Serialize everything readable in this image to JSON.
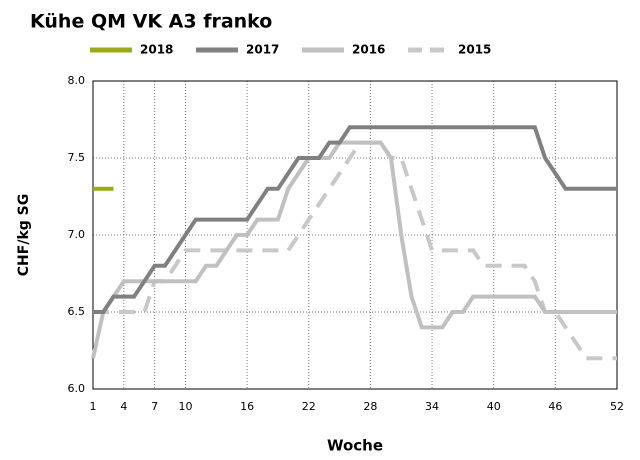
{
  "chart_data": {
    "type": "line",
    "title": "Kühe QM VK A3 franko",
    "x_label": "Woche",
    "y_label": "CHF/kg SG",
    "x": [
      1,
      2,
      3,
      4,
      5,
      6,
      7,
      8,
      9,
      10,
      11,
      12,
      13,
      14,
      15,
      16,
      17,
      18,
      19,
      20,
      21,
      22,
      23,
      24,
      25,
      26,
      27,
      28,
      29,
      30,
      31,
      32,
      33,
      34,
      35,
      36,
      37,
      38,
      39,
      40,
      41,
      42,
      43,
      44,
      45,
      46,
      47,
      48,
      49,
      50,
      51,
      52
    ],
    "xlim": [
      1,
      52
    ],
    "xticks": [
      1,
      4,
      7,
      10,
      16,
      22,
      28,
      34,
      40,
      46,
      52
    ],
    "ylim": [
      6,
      8
    ],
    "yticks": [
      {
        "value": 6,
        "label": "6.0"
      },
      6.5,
      {
        "value": 7,
        "label": "7.0"
      },
      7.5,
      {
        "value": 8,
        "label": "8.0"
      }
    ],
    "grid": true,
    "series": [
      {
        "name": "2018",
        "color": "#9aab17",
        "dashed": false,
        "values": [
          7.3,
          7.3,
          7.3,
          null,
          null,
          null,
          null,
          null,
          null,
          null,
          null,
          null,
          null,
          null,
          null,
          null,
          null,
          null,
          null,
          null,
          null,
          null,
          null,
          null,
          null,
          null,
          null,
          null,
          null,
          null,
          null,
          null,
          null,
          null,
          null,
          null,
          null,
          null,
          null,
          null,
          null,
          null,
          null,
          null,
          null,
          null,
          null,
          null,
          null,
          null,
          null,
          null
        ]
      },
      {
        "name": "2017",
        "color": "#808080",
        "dashed": false,
        "values": [
          6.5,
          6.5,
          6.6,
          6.6,
          6.6,
          6.7,
          6.8,
          6.8,
          6.9,
          7.0,
          7.1,
          7.1,
          7.1,
          7.1,
          7.1,
          7.1,
          7.2,
          7.3,
          7.3,
          7.4,
          7.5,
          7.5,
          7.5,
          7.6,
          7.6,
          7.7,
          7.7,
          7.7,
          7.7,
          7.7,
          7.7,
          7.7,
          7.7,
          7.7,
          7.7,
          7.7,
          7.7,
          7.7,
          7.7,
          7.7,
          7.7,
          7.7,
          7.7,
          7.7,
          7.5,
          7.4,
          7.3,
          7.3,
          7.3,
          7.3,
          7.3,
          7.3
        ]
      },
      {
        "name": "2016",
        "color": "#c0c0c0",
        "dashed": false,
        "values": [
          6.2,
          6.5,
          6.6,
          6.7,
          6.7,
          6.7,
          6.7,
          6.7,
          6.7,
          6.7,
          6.7,
          6.8,
          6.8,
          6.9,
          7.0,
          7.0,
          7.1,
          7.1,
          7.1,
          7.3,
          7.4,
          7.5,
          7.5,
          7.5,
          7.6,
          7.6,
          7.6,
          7.6,
          7.6,
          7.5,
          7.0,
          6.6,
          6.4,
          6.4,
          6.4,
          6.5,
          6.5,
          6.6,
          6.6,
          6.6,
          6.6,
          6.6,
          6.6,
          6.6,
          6.5,
          6.5,
          6.5,
          6.5,
          6.5,
          6.5,
          6.5,
          6.5
        ]
      },
      {
        "name": "2015",
        "color": "#c8c8c8",
        "dashed": true,
        "values": [
          6.5,
          6.5,
          6.5,
          6.5,
          6.5,
          6.5,
          6.7,
          6.7,
          6.8,
          6.9,
          6.9,
          6.9,
          6.9,
          6.9,
          6.9,
          6.9,
          6.9,
          6.9,
          6.9,
          6.9,
          7.0,
          7.1,
          7.2,
          7.3,
          7.4,
          7.5,
          7.6,
          7.6,
          7.6,
          7.5,
          7.5,
          7.3,
          7.1,
          6.9,
          6.9,
          6.9,
          6.9,
          6.9,
          6.8,
          6.8,
          6.8,
          6.8,
          6.8,
          6.7,
          6.5,
          6.5,
          6.4,
          6.3,
          6.2,
          6.2,
          6.2,
          6.2
        ]
      }
    ]
  }
}
